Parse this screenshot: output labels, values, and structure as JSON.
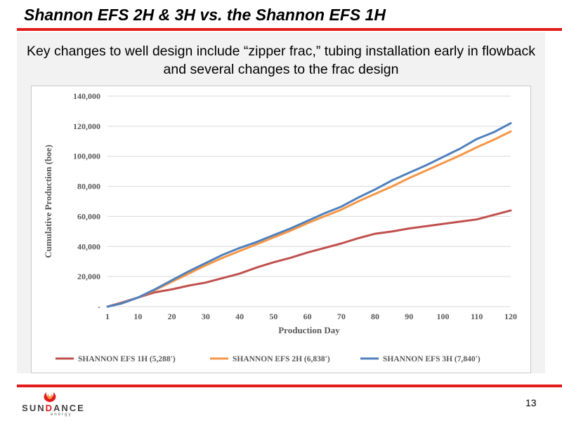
{
  "slide": {
    "title": "Shannon EFS 2H & 3H vs. the Shannon EFS 1H",
    "subtitle": "Key changes to well design include “zipper frac,” tubing installation early in flowback and several changes to the frac design",
    "page_number": "13"
  },
  "logo": {
    "word_prefix": "SUN",
    "word_highlight": "D",
    "word_suffix": "ANCE",
    "sub": "energy"
  },
  "colors": {
    "accent": "#e21b1b",
    "series_1h": "#c0504d",
    "series_2h": "#f79646",
    "series_3h": "#4f81bd"
  },
  "chart_data": {
    "type": "line",
    "title": "",
    "xlabel": "Production Day",
    "ylabel": "Cumulative Production (boe)",
    "xlim": [
      1,
      120
    ],
    "ylim": [
      0,
      140000
    ],
    "x_ticks": [
      1,
      10,
      20,
      30,
      40,
      50,
      60,
      70,
      80,
      90,
      100,
      110,
      120
    ],
    "y_ticks": [
      0,
      20000,
      40000,
      60000,
      80000,
      100000,
      120000,
      140000
    ],
    "y_tick_labels": [
      "-",
      "20,000",
      "40,000",
      "60,000",
      "80,000",
      "100,000",
      "120,000",
      "140,000"
    ],
    "grid": "horizontal",
    "legend_position": "bottom",
    "x": [
      1,
      5,
      10,
      15,
      20,
      25,
      30,
      35,
      40,
      45,
      50,
      55,
      60,
      65,
      70,
      75,
      80,
      85,
      90,
      95,
      100,
      105,
      110,
      115,
      120
    ],
    "series": [
      {
        "name": "SHANNON EFS 1H (5,288')",
        "color": "#c0504d",
        "values": [
          0,
          2500,
          6000,
          9500,
          11500,
          14000,
          16000,
          19000,
          22000,
          26000,
          29500,
          32500,
          36000,
          39000,
          42000,
          45500,
          48500,
          50000,
          52000,
          53500,
          55000,
          56500,
          58000,
          61000,
          64000
        ]
      },
      {
        "name": "SHANNON EFS 2H (6,838')",
        "color": "#f79646",
        "values": [
          0,
          2000,
          6000,
          11000,
          16500,
          22000,
          27500,
          32500,
          37000,
          41500,
          46000,
          50500,
          55500,
          60000,
          64500,
          70000,
          75000,
          80000,
          85500,
          90500,
          95500,
          100500,
          106000,
          111000,
          116500
        ]
      },
      {
        "name": "SHANNON EFS 3H (7,840')",
        "color": "#4f81bd",
        "values": [
          0,
          2000,
          6000,
          11500,
          17500,
          23500,
          29000,
          34500,
          39000,
          43000,
          47500,
          52000,
          57000,
          62000,
          66500,
          72500,
          78000,
          84000,
          89000,
          94000,
          99500,
          105000,
          111500,
          116000,
          122000
        ]
      }
    ]
  }
}
